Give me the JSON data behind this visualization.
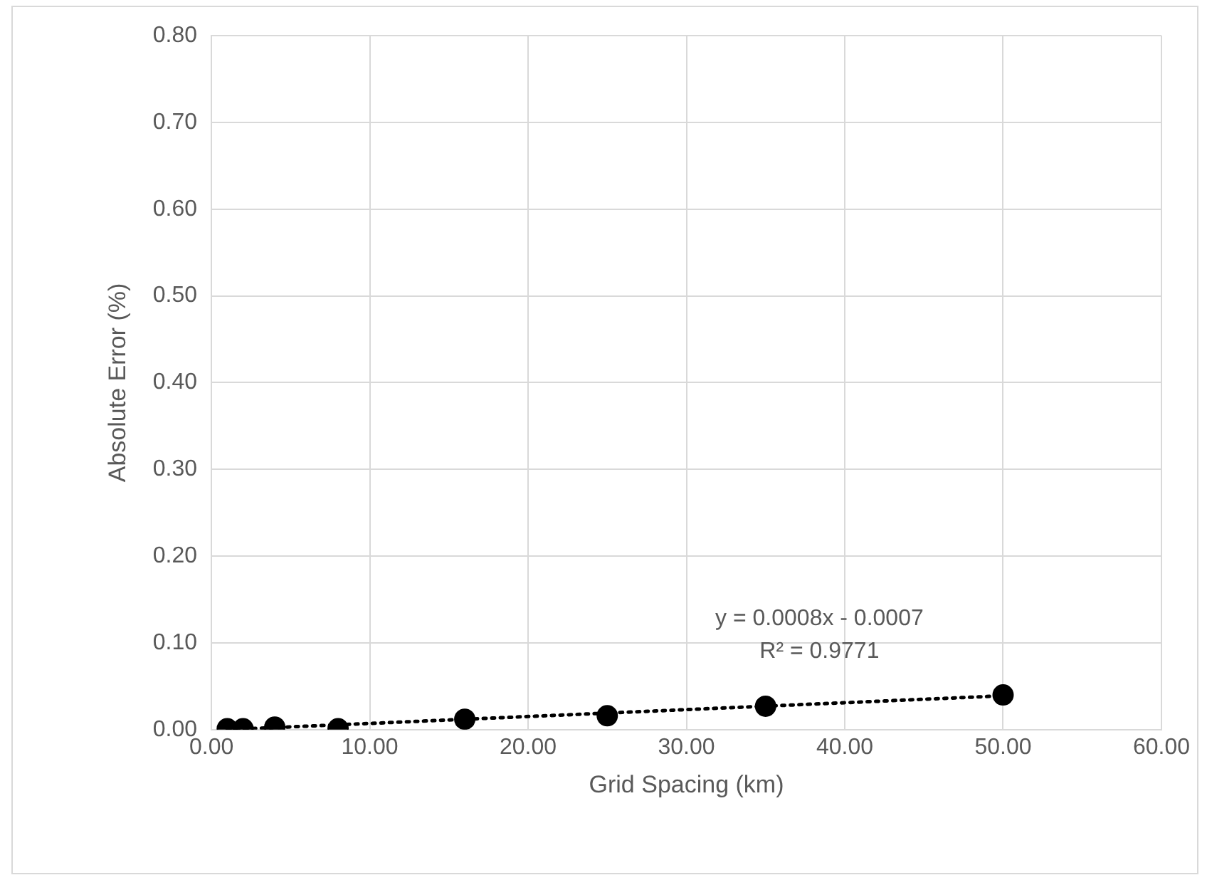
{
  "chart_data": {
    "type": "scatter",
    "xlabel": "Grid Spacing (km)",
    "ylabel": "Absolute Error (%)",
    "x": [
      1,
      2,
      4,
      8,
      16,
      25,
      35,
      50
    ],
    "series": [
      {
        "type": "scatter",
        "color": "#000000",
        "marker": "circle",
        "values": [
          0.001,
          0.001,
          0.003,
          0.001,
          0.012,
          0.016,
          0.027,
          0.04
        ]
      },
      {
        "type": "line",
        "color": "#000000",
        "line_style": "dotted",
        "marker": "none",
        "x": [
          1,
          50
        ],
        "values": [
          0,
          0.039
        ]
      }
    ],
    "xlim": [
      0,
      60
    ],
    "xticks": [
      {
        "value": 0,
        "label": "0.00"
      },
      {
        "value": 10,
        "label": "10.00"
      },
      {
        "value": 20,
        "label": "20.00"
      },
      {
        "value": 30,
        "label": "30.00"
      },
      {
        "value": 40,
        "label": "40.00"
      },
      {
        "value": 50,
        "label": "50.00"
      },
      {
        "value": 60,
        "label": "60.00"
      }
    ],
    "ylim": [
      0,
      0.8
    ],
    "yticks": [
      {
        "value": 0,
        "label": "0.00"
      },
      {
        "value": 0.1,
        "label": "0.10"
      },
      {
        "value": 0.2,
        "label": "0.20"
      },
      {
        "value": 0.3,
        "label": "0.30"
      },
      {
        "value": 0.4,
        "label": "0.40"
      },
      {
        "value": 0.5,
        "label": "0.50"
      },
      {
        "value": 0.6,
        "label": "0.60"
      },
      {
        "value": 0.7,
        "label": "0.70"
      },
      {
        "value": 0.8,
        "label": "0.80"
      }
    ],
    "grid": true,
    "legend": false,
    "annotations": [
      "y = 0.0008x - 0.0007",
      "R² = 0.9771"
    ]
  }
}
